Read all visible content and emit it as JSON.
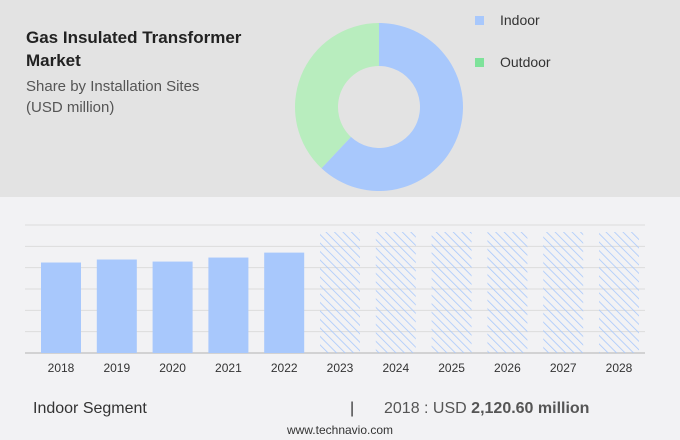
{
  "title": "Gas Insulated Transformer Market",
  "subtitle": "Share by Installation Sites (USD million)",
  "chart_data": [
    {
      "type": "pie",
      "donut": true,
      "slices": [
        {
          "name": "Indoor",
          "value": 62,
          "color": "#a8c8fc"
        },
        {
          "name": "Outdoor",
          "value": 38,
          "color": "#b8edbe"
        }
      ],
      "legend": "right",
      "legend_colors": [
        "#a8c8fc",
        "#7ee29a"
      ]
    },
    {
      "type": "bar",
      "categories": [
        "2018",
        "2019",
        "2020",
        "2021",
        "2022",
        "2023",
        "2024",
        "2025",
        "2026",
        "2027",
        "2028"
      ],
      "values": [
        2120.6,
        2191,
        2143,
        2237,
        2353,
        null,
        null,
        null,
        null,
        null,
        null
      ],
      "forecast_from": "2023",
      "ylim": [
        0,
        3000
      ],
      "grid": true,
      "color": "#a8c8fc"
    }
  ],
  "footer": {
    "segment": "Indoor Segment",
    "separator": "|",
    "year_label": "2018 : USD",
    "value": "2,120.60 million",
    "url": "www.technavio.com"
  }
}
